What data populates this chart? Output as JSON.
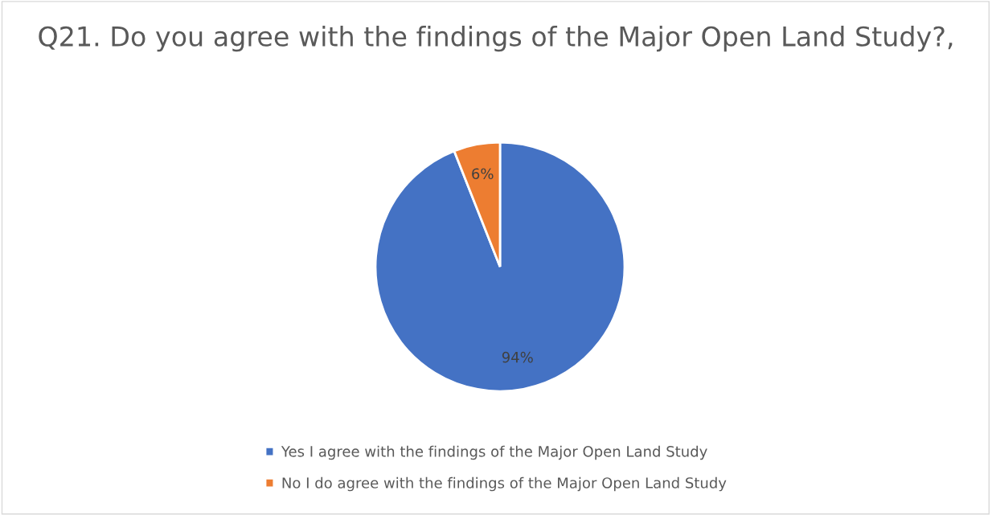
{
  "chart_data": {
    "type": "pie",
    "title": "Q21. Do you agree with the findings of the Major Open Land Study?,",
    "categories": [
      "Yes I agree with the findings of the Major Open Land Study",
      "No I do agree with the findings of the Major Open Land Study"
    ],
    "values": [
      94,
      6
    ],
    "colors": [
      "#4472c4",
      "#ed7d31"
    ],
    "value_labels": [
      "94%",
      "6%"
    ],
    "legend": "bottom"
  }
}
